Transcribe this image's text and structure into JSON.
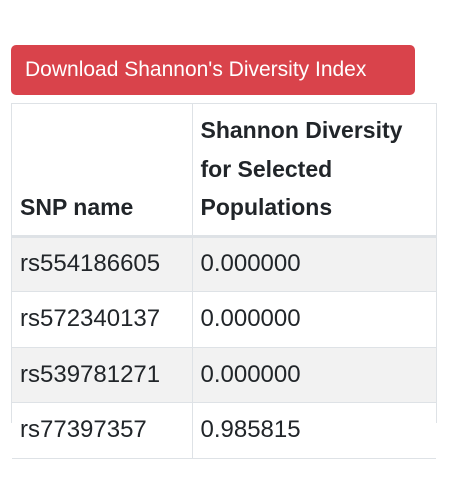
{
  "download_button": {
    "label": "Download Shannon's Diversity Index"
  },
  "table": {
    "columns": [
      "SNP name",
      "Shannon Diversity for Selected Populations"
    ],
    "rows": [
      {
        "snp": "rs554186605",
        "diversity": "0.000000"
      },
      {
        "snp": "rs572340137",
        "diversity": "0.000000"
      },
      {
        "snp": "rs539781271",
        "diversity": "0.000000"
      },
      {
        "snp": "rs77397357",
        "diversity": "0.985815"
      }
    ]
  },
  "colors": {
    "button_background": "#d9434b",
    "button_text": "#ffffff",
    "striped_row": "#f2f2f2",
    "border": "#dee2e6"
  }
}
